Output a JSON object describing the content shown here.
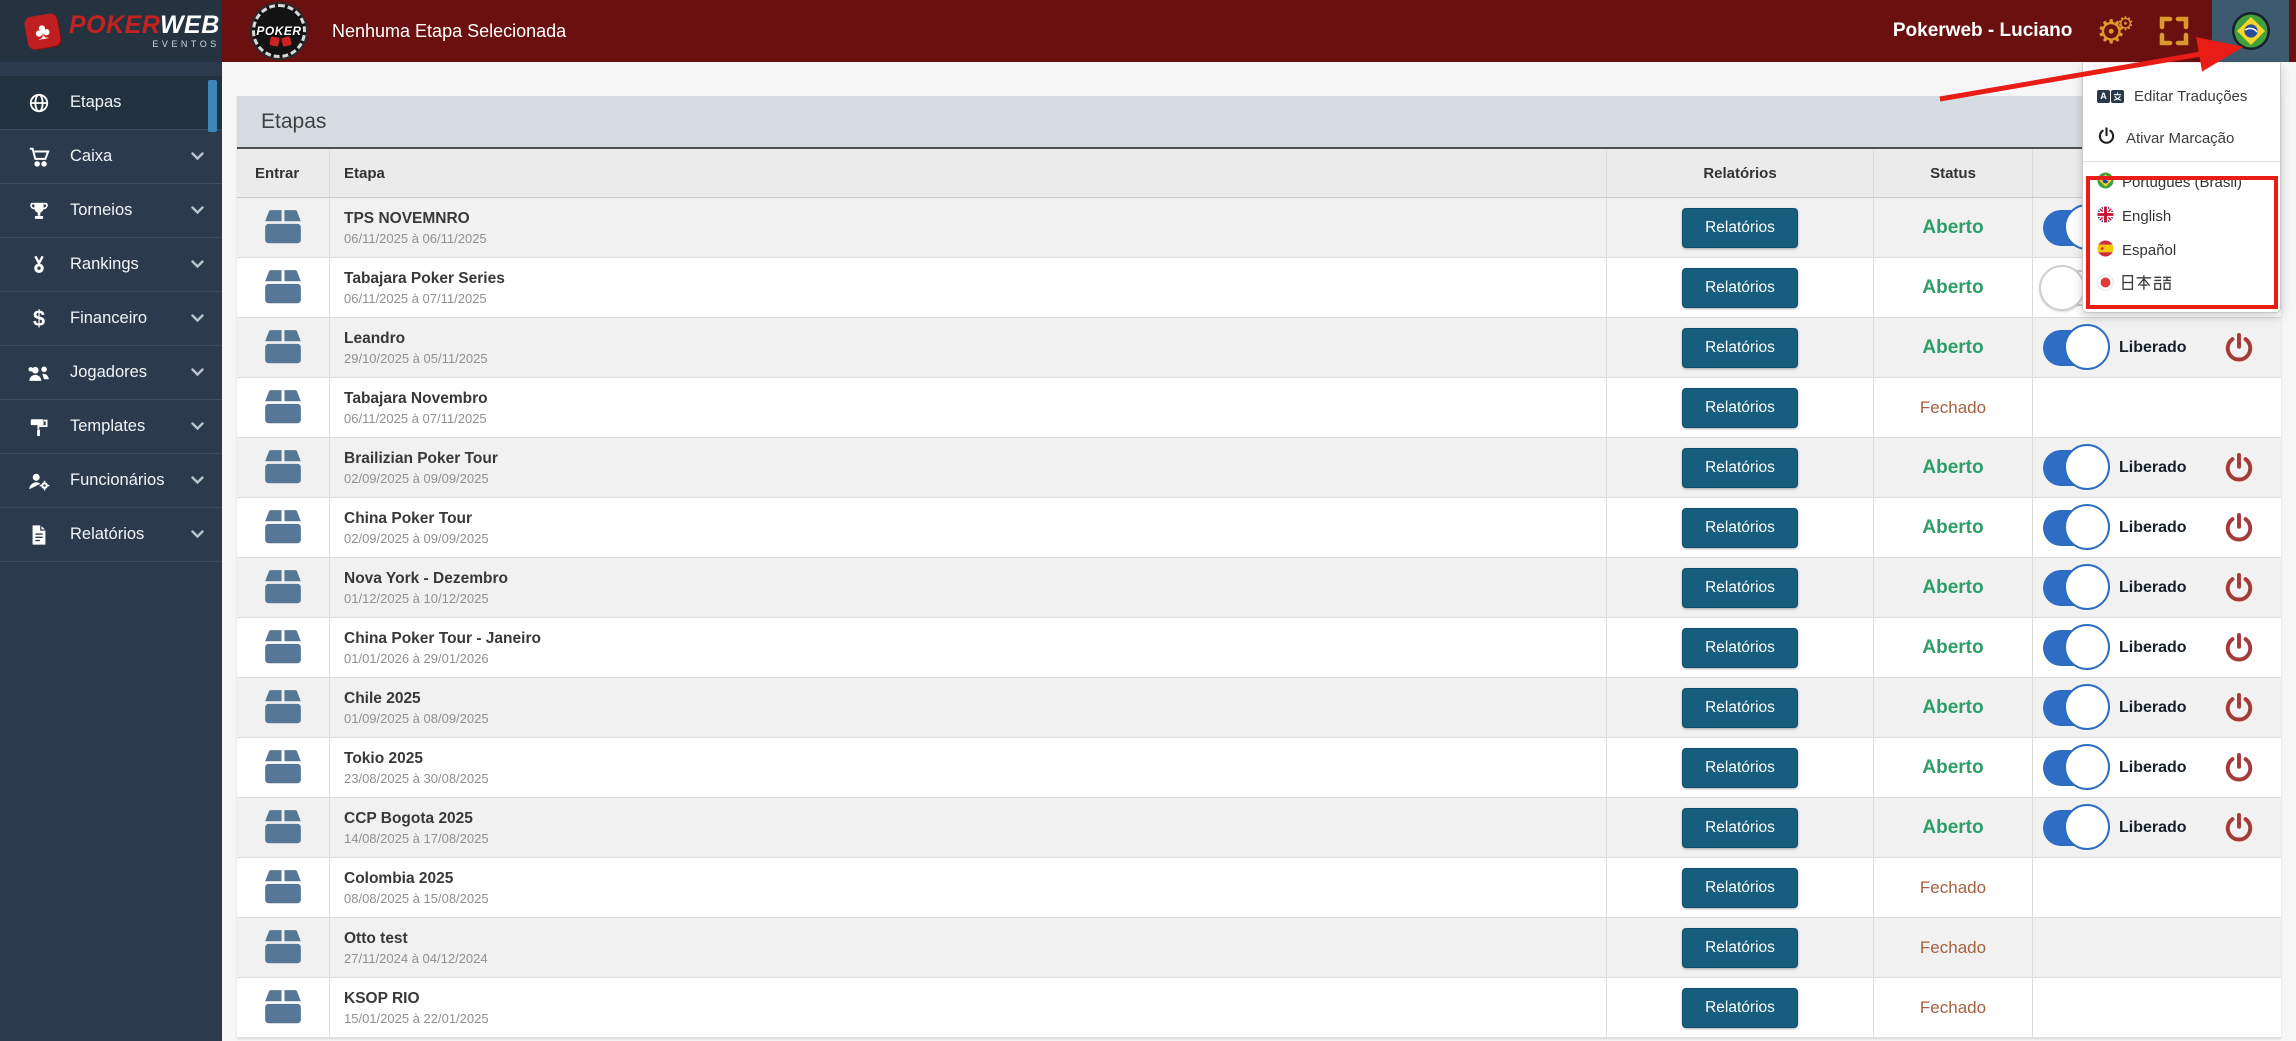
{
  "topbar": {
    "chip_logo_text": "POKER",
    "selected_stage": "Nenhuma Etapa Selecionada",
    "user": "Pokerweb - Luciano"
  },
  "brand": {
    "poker": "POKER",
    "web": "WEB",
    "sub": "EVENTOS",
    "suit": "♣"
  },
  "sidebar": {
    "items": [
      {
        "label": "Etapas",
        "icon": "globe-icon",
        "active": true,
        "has_submenu": false
      },
      {
        "label": "Caixa",
        "icon": "cart-icon",
        "active": false,
        "has_submenu": true
      },
      {
        "label": "Torneios",
        "icon": "trophy-icon",
        "active": false,
        "has_submenu": true
      },
      {
        "label": "Rankings",
        "icon": "medal-icon",
        "active": false,
        "has_submenu": true
      },
      {
        "label": "Financeiro",
        "icon": "dollar-icon",
        "active": false,
        "has_submenu": true
      },
      {
        "label": "Jogadores",
        "icon": "users-icon",
        "active": false,
        "has_submenu": true
      },
      {
        "label": "Templates",
        "icon": "paint-roller-icon",
        "active": false,
        "has_submenu": true
      },
      {
        "label": "Funcionários",
        "icon": "user-gear-icon",
        "active": false,
        "has_submenu": true
      },
      {
        "label": "Relatórios",
        "icon": "file-icon",
        "active": false,
        "has_submenu": true
      }
    ]
  },
  "main": {
    "card_title": "Etapas",
    "table": {
      "headers": {
        "entrar": "Entrar",
        "etapa": "Etapa",
        "relatorios": "Relatórios",
        "status": "Status"
      },
      "report_button_label": "Relatórios",
      "liberado_label": "Liberado",
      "rows": [
        {
          "name": "TPS NOVEMNRO",
          "dates": "06/11/2025 à 06/11/2025",
          "status": "Aberto",
          "toggle": "on",
          "show_liberado": false,
          "show_power": false
        },
        {
          "name": "Tabajara Poker Series",
          "dates": "06/11/2025 à 07/11/2025",
          "status": "Aberto",
          "toggle": "off",
          "show_liberado": false,
          "show_power": false
        },
        {
          "name": "Leandro",
          "dates": "29/10/2025 à 05/11/2025",
          "status": "Aberto",
          "toggle": "on",
          "show_liberado": true,
          "show_power": true
        },
        {
          "name": "Tabajara Novembro",
          "dates": "06/11/2025 à 07/11/2025",
          "status": "Fechado",
          "toggle": "none",
          "show_liberado": false,
          "show_power": false
        },
        {
          "name": "Brailizian Poker Tour",
          "dates": "02/09/2025 à 09/09/2025",
          "status": "Aberto",
          "toggle": "on",
          "show_liberado": true,
          "show_power": true
        },
        {
          "name": "China Poker Tour",
          "dates": "02/09/2025 à 09/09/2025",
          "status": "Aberto",
          "toggle": "on",
          "show_liberado": true,
          "show_power": true
        },
        {
          "name": "Nova York - Dezembro",
          "dates": "01/12/2025 à 10/12/2025",
          "status": "Aberto",
          "toggle": "on",
          "show_liberado": true,
          "show_power": true
        },
        {
          "name": "China Poker Tour - Janeiro",
          "dates": "01/01/2026 à 29/01/2026",
          "status": "Aberto",
          "toggle": "on",
          "show_liberado": true,
          "show_power": true
        },
        {
          "name": "Chile 2025",
          "dates": "01/09/2025 à 08/09/2025",
          "status": "Aberto",
          "toggle": "on",
          "show_liberado": true,
          "show_power": true
        },
        {
          "name": "Tokio 2025",
          "dates": "23/08/2025 à 30/08/2025",
          "status": "Aberto",
          "toggle": "on",
          "show_liberado": true,
          "show_power": true
        },
        {
          "name": "CCP Bogota 2025",
          "dates": "14/08/2025 à 17/08/2025",
          "status": "Aberto",
          "toggle": "on",
          "show_liberado": true,
          "show_power": true
        },
        {
          "name": "Colombia 2025",
          "dates": "08/08/2025 à 15/08/2025",
          "status": "Fechado",
          "toggle": "none",
          "show_liberado": false,
          "show_power": false
        },
        {
          "name": "Otto test",
          "dates": "27/11/2024 à 04/12/2024",
          "status": "Fechado",
          "toggle": "none",
          "show_liberado": false,
          "show_power": false
        },
        {
          "name": "KSOP RIO",
          "dates": "15/01/2025 à 22/01/2025",
          "status": "Fechado",
          "toggle": "none",
          "show_liberado": false,
          "show_power": false
        }
      ]
    }
  },
  "dropdown": {
    "items": [
      {
        "label": "Editar Traduções",
        "icon": "language-icon"
      },
      {
        "label": "Ativar Marcação",
        "icon": "power-dark-icon"
      }
    ],
    "languages": [
      {
        "label": "Português (Brasil)",
        "flag": "brazil"
      },
      {
        "label": "English",
        "flag": "uk"
      },
      {
        "label": "Español",
        "flag": "spain"
      },
      {
        "label": "日本語",
        "flag": "japan"
      }
    ]
  },
  "colors": {
    "topbar": "#6b1010",
    "sidebar": "#2b3b4d",
    "gold": "#d9992b",
    "report_button": "#175d7e",
    "status_open": "#2e9e66",
    "status_closed": "#a5613c",
    "toggle_on": "#2d6dc3",
    "power": "#a43b39",
    "annotation": "#e8201a"
  }
}
